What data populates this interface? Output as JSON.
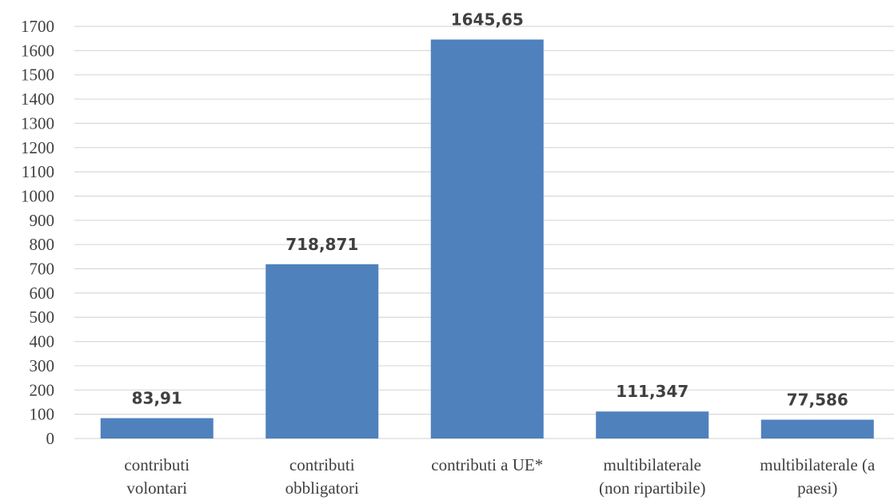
{
  "chart_data": {
    "type": "bar",
    "categories": [
      [
        "contributi",
        "volontari"
      ],
      [
        "contributi",
        "obbligatori"
      ],
      [
        "contributi a UE*"
      ],
      [
        "multibilaterale",
        "(non ripartibile)"
      ],
      [
        "multibilaterale (a",
        "paesi)"
      ]
    ],
    "values": [
      83.91,
      718.871,
      1645.65,
      111.347,
      77.586
    ],
    "data_labels": [
      "83,91",
      "718,871",
      "1645,65",
      "111,347",
      "77,586"
    ],
    "yticks": [
      "0",
      "100",
      "200",
      "300",
      "400",
      "500",
      "600",
      "700",
      "800",
      "900",
      "1000",
      "1100",
      "1200",
      "1300",
      "1400",
      "1500",
      "1600",
      "1700"
    ],
    "ylim": [
      0,
      1700
    ],
    "title": "",
    "xlabel": "",
    "ylabel": "",
    "grid": true,
    "bar_color": "#4f81bd",
    "gridline_color": "#d9d9d9",
    "text_color": "#404040"
  }
}
